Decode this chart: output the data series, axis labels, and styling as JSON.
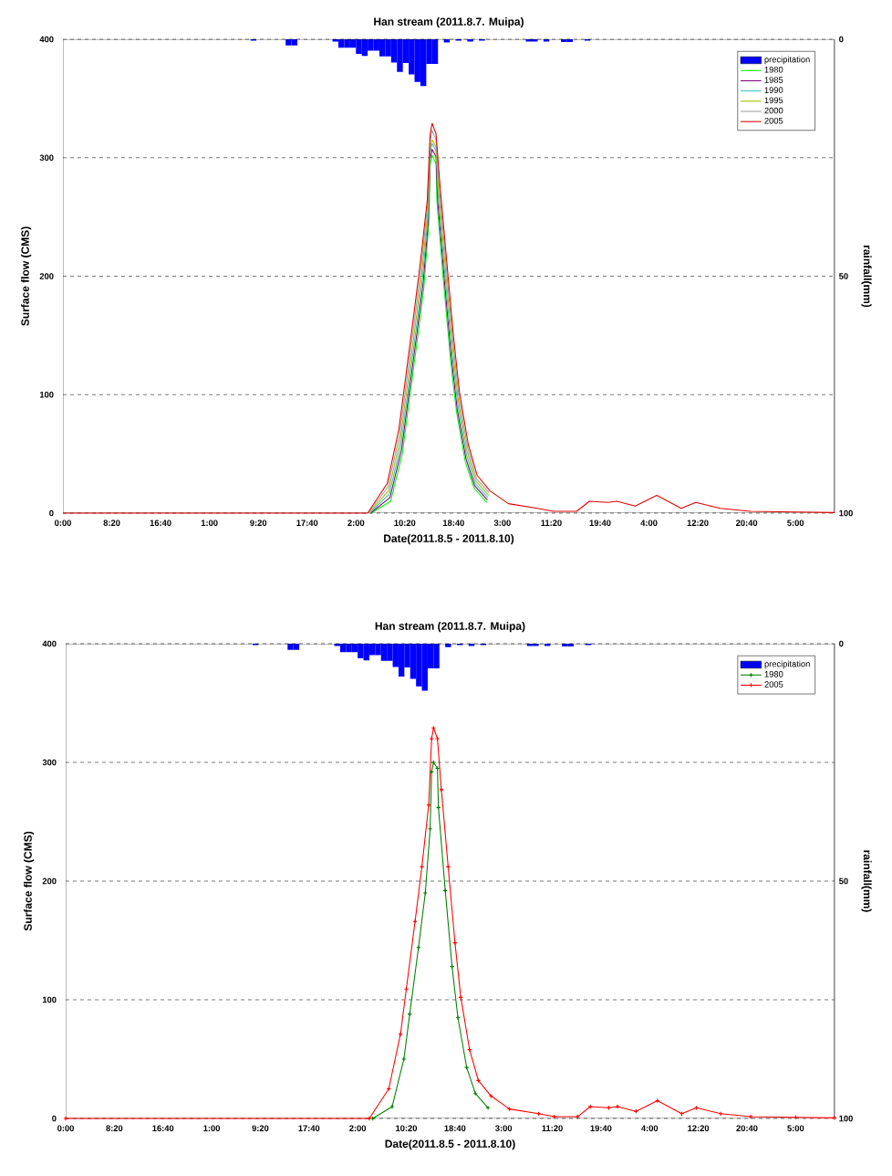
{
  "chart_data": [
    {
      "type": "line",
      "title": "Han stream (2011.8.7. Muipa)",
      "xlabel": "Date(2011.8.5 - 2011.8.10)",
      "ylabel": "Surface flow (CMS)",
      "y2label": "rainfall(mm)",
      "x": [
        "2011-08-05T00:00",
        "2011-08-07T04:00",
        "2011-08-07T07:20",
        "2011-08-07T09:20",
        "2011-08-07T10:20",
        "2011-08-07T11:50",
        "2011-08-07T13:00",
        "2011-08-07T14:10",
        "2011-08-07T14:40",
        "2011-08-07T15:00",
        "2011-08-07T15:40",
        "2011-08-07T16:20",
        "2011-08-07T17:30",
        "2011-08-07T18:40",
        "2011-08-07T19:40",
        "2011-08-07T21:10",
        "2011-08-07T22:40",
        "2011-08-08T00:50",
        "2011-08-08T04:00",
        "2011-08-08T09:00",
        "2011-08-08T11:40",
        "2011-08-08T15:40",
        "2011-08-08T17:50",
        "2011-08-08T21:00",
        "2011-08-08T22:30",
        "2011-08-09T01:40",
        "2011-08-09T05:20",
        "2011-08-09T09:30",
        "2011-08-09T12:00",
        "2011-08-09T16:10",
        "2011-08-09T21:20",
        "2011-08-10T05:00",
        "2011-08-10T11:40"
      ],
      "xlim": [
        "2011-08-05T00:00",
        "2011-08-10T11:40"
      ],
      "xticks": [
        {
          "value": "2011-08-05T00:00",
          "label": "0:00"
        },
        {
          "value": "2011-08-05T08:20",
          "label": "8:20"
        },
        {
          "value": "2011-08-05T16:40",
          "label": "16:40"
        },
        {
          "value": "2011-08-06T01:00",
          "label": "1:00"
        },
        {
          "value": "2011-08-06T09:20",
          "label": "9:20"
        },
        {
          "value": "2011-08-06T17:40",
          "label": "17:40"
        },
        {
          "value": "2011-08-07T02:00",
          "label": "2:00"
        },
        {
          "value": "2011-08-07T10:20",
          "label": "10:20"
        },
        {
          "value": "2011-08-07T18:40",
          "label": "18:40"
        },
        {
          "value": "2011-08-08T03:00",
          "label": "3:00"
        },
        {
          "value": "2011-08-08T11:20",
          "label": "11:20"
        },
        {
          "value": "2011-08-08T19:40",
          "label": "19:40"
        },
        {
          "value": "2011-08-09T04:00",
          "label": "4:00"
        },
        {
          "value": "2011-08-09T12:20",
          "label": "12:20"
        },
        {
          "value": "2011-08-09T20:40",
          "label": "20:40"
        },
        {
          "value": "2011-08-10T05:00",
          "label": "5:00"
        }
      ],
      "ylim": [
        0,
        400
      ],
      "yticks": [
        0,
        100,
        200,
        300,
        400
      ],
      "y2lim": [
        100,
        0
      ],
      "y2ticks": [
        0,
        50,
        100
      ],
      "grid": "y",
      "legend": "top right",
      "marker": "none",
      "series": [
        {
          "name": "precipitation",
          "type": "bar",
          "axis": "y2",
          "color": "#0000ff",
          "x": [
            "2011-08-06T08:30",
            "2011-08-06T14:30",
            "2011-08-06T15:30",
            "2011-08-06T22:30",
            "2011-08-06T23:30",
            "2011-08-07T00:30",
            "2011-08-07T01:30",
            "2011-08-07T02:30",
            "2011-08-07T03:30",
            "2011-08-07T04:30",
            "2011-08-07T05:30",
            "2011-08-07T06:30",
            "2011-08-07T07:30",
            "2011-08-07T08:30",
            "2011-08-07T09:30",
            "2011-08-07T10:30",
            "2011-08-07T11:30",
            "2011-08-07T12:30",
            "2011-08-07T13:30",
            "2011-08-07T14:30",
            "2011-08-07T15:30",
            "2011-08-07T17:30",
            "2011-08-07T19:30",
            "2011-08-07T21:30",
            "2011-08-07T23:30",
            "2011-08-08T07:30",
            "2011-08-08T08:30",
            "2011-08-08T10:30",
            "2011-08-08T13:30",
            "2011-08-08T14:30",
            "2011-08-08T17:30"
          ],
          "values": [
            0.3,
            1.3,
            1.3,
            0.5,
            1.8,
            1.8,
            1.8,
            3.1,
            3.5,
            2.4,
            2.4,
            3.6,
            3.6,
            4.9,
            6.9,
            5.0,
            7.4,
            9.0,
            9.9,
            5.2,
            5.2,
            0.7,
            0.3,
            0.5,
            0.3,
            0.5,
            0.5,
            0.5,
            0.6,
            0.6,
            0.3
          ]
        },
        {
          "name": "1980",
          "color": "#00ff00",
          "x": [
            "2011-08-07T04:35",
            "2011-08-07T07:55",
            "2011-08-07T09:55",
            "2011-08-07T10:55",
            "2011-08-07T12:25",
            "2011-08-07T13:35",
            "2011-08-07T14:25",
            "2011-08-07T14:40",
            "2011-08-07T15:00",
            "2011-08-07T15:40",
            "2011-08-07T15:50",
            "2011-08-07T17:00",
            "2011-08-07T18:10",
            "2011-08-07T19:10",
            "2011-08-07T20:40",
            "2011-08-07T22:10",
            "2011-08-08T00:20"
          ],
          "values": [
            0,
            10,
            50,
            88,
            144,
            190,
            244,
            294,
            302,
            295,
            262,
            192,
            128,
            85,
            43,
            21,
            9
          ]
        },
        {
          "name": "1985",
          "color": "#800080",
          "x": [
            "2011-08-07T04:28",
            "2011-08-07T07:48",
            "2011-08-07T09:48",
            "2011-08-07T10:48",
            "2011-08-07T12:18",
            "2011-08-07T13:28",
            "2011-08-07T14:22",
            "2011-08-07T14:40",
            "2011-08-07T15:00",
            "2011-08-07T15:40",
            "2011-08-07T15:56",
            "2011-08-07T17:06",
            "2011-08-07T18:16",
            "2011-08-07T19:16",
            "2011-08-07T20:46",
            "2011-08-07T22:16",
            "2011-08-08T00:26"
          ],
          "values": [
            0,
            13,
            54,
            92,
            148,
            194,
            248,
            299,
            307,
            301,
            265,
            196,
            132,
            88,
            46,
            23,
            11
          ]
        },
        {
          "name": "1990",
          "color": "#40c0c0",
          "x": [
            "2011-08-07T04:21",
            "2011-08-07T07:41",
            "2011-08-07T09:41",
            "2011-08-07T10:41",
            "2011-08-07T12:11",
            "2011-08-07T13:21",
            "2011-08-07T14:19",
            "2011-08-07T14:40",
            "2011-08-07T15:00",
            "2011-08-07T15:40",
            "2011-08-07T16:02",
            "2011-08-07T17:12",
            "2011-08-07T18:22",
            "2011-08-07T19:22",
            "2011-08-07T20:52",
            "2011-08-07T22:22",
            "2011-08-08T00:32"
          ],
          "values": [
            0,
            16,
            58,
            96,
            152,
            198,
            252,
            304,
            312,
            306,
            268,
            200,
            136,
            92,
            49,
            25,
            13
          ]
        },
        {
          "name": "1995",
          "color": "#a0c000",
          "x": [
            "2011-08-07T04:14",
            "2011-08-07T07:34",
            "2011-08-07T09:34",
            "2011-08-07T10:34",
            "2011-08-07T12:04",
            "2011-08-07T13:14",
            "2011-08-07T14:16",
            "2011-08-07T14:40",
            "2011-08-07T15:00",
            "2011-08-07T15:40",
            "2011-08-07T16:08",
            "2011-08-07T17:18",
            "2011-08-07T18:28",
            "2011-08-07T19:28",
            "2011-08-07T20:58",
            "2011-08-07T22:28",
            "2011-08-08T00:38"
          ],
          "values": [
            0,
            19,
            62,
            100,
            156,
            202,
            256,
            309,
            315,
            309,
            271,
            204,
            140,
            95,
            52,
            27,
            15
          ]
        },
        {
          "name": "2000",
          "color": "#a0a0a0",
          "x": [
            "2011-08-07T04:07",
            "2011-08-07T07:27",
            "2011-08-07T09:27",
            "2011-08-07T10:27",
            "2011-08-07T11:57",
            "2011-08-07T13:07",
            "2011-08-07T14:13",
            "2011-08-07T14:40",
            "2011-08-07T15:00",
            "2011-08-07T15:40",
            "2011-08-07T16:14",
            "2011-08-07T17:24",
            "2011-08-07T18:34",
            "2011-08-07T19:34",
            "2011-08-07T21:04",
            "2011-08-07T22:34",
            "2011-08-08T00:44"
          ],
          "values": [
            0,
            22,
            66,
            104,
            161,
            207,
            260,
            314,
            323,
            315,
            274,
            208,
            144,
            98,
            55,
            29,
            17
          ]
        },
        {
          "name": "2005",
          "color": "#e00000",
          "values": [
            0,
            0,
            25,
            71,
            109,
            166,
            212,
            264,
            320,
            329,
            320,
            277,
            212,
            148,
            102,
            58,
            32,
            19,
            8,
            4,
            1.5,
            1.5,
            10,
            9,
            10,
            6,
            15,
            4,
            9,
            4,
            1.5,
            1,
            0.5
          ]
        }
      ]
    },
    {
      "type": "line",
      "title": "Han stream (2011.8.7. Muipa)",
      "xlabel": "Date(2011.8.5 - 2011.8.10)",
      "ylabel": "Surface flow (CMS)",
      "y2label": "rainfall(mm)",
      "x": [
        "2011-08-05T00:00",
        "2011-08-07T04:00",
        "2011-08-07T07:20",
        "2011-08-07T09:20",
        "2011-08-07T10:20",
        "2011-08-07T11:50",
        "2011-08-07T13:00",
        "2011-08-07T14:10",
        "2011-08-07T14:40",
        "2011-08-07T15:00",
        "2011-08-07T15:40",
        "2011-08-07T16:20",
        "2011-08-07T17:30",
        "2011-08-07T18:40",
        "2011-08-07T19:40",
        "2011-08-07T21:10",
        "2011-08-07T22:40",
        "2011-08-08T00:50",
        "2011-08-08T04:00",
        "2011-08-08T09:00",
        "2011-08-08T11:40",
        "2011-08-08T15:40",
        "2011-08-08T17:50",
        "2011-08-08T21:00",
        "2011-08-08T22:30",
        "2011-08-09T01:40",
        "2011-08-09T05:20",
        "2011-08-09T09:30",
        "2011-08-09T12:00",
        "2011-08-09T16:10",
        "2011-08-09T21:20",
        "2011-08-10T05:00",
        "2011-08-10T11:40"
      ],
      "xlim": [
        "2011-08-05T00:00",
        "2011-08-10T11:40"
      ],
      "xticks": [
        {
          "value": "2011-08-05T00:00",
          "label": "0:00"
        },
        {
          "value": "2011-08-05T08:20",
          "label": "8:20"
        },
        {
          "value": "2011-08-05T16:40",
          "label": "16:40"
        },
        {
          "value": "2011-08-06T01:00",
          "label": "1:00"
        },
        {
          "value": "2011-08-06T09:20",
          "label": "9:20"
        },
        {
          "value": "2011-08-06T17:40",
          "label": "17:40"
        },
        {
          "value": "2011-08-07T02:00",
          "label": "2:00"
        },
        {
          "value": "2011-08-07T10:20",
          "label": "10:20"
        },
        {
          "value": "2011-08-07T18:40",
          "label": "18:40"
        },
        {
          "value": "2011-08-08T03:00",
          "label": "3:00"
        },
        {
          "value": "2011-08-08T11:20",
          "label": "11:20"
        },
        {
          "value": "2011-08-08T19:40",
          "label": "19:40"
        },
        {
          "value": "2011-08-09T04:00",
          "label": "4:00"
        },
        {
          "value": "2011-08-09T12:20",
          "label": "12:20"
        },
        {
          "value": "2011-08-09T20:40",
          "label": "20:40"
        },
        {
          "value": "2011-08-10T05:00",
          "label": "5:00"
        }
      ],
      "ylim": [
        0,
        400
      ],
      "yticks": [
        0,
        100,
        200,
        300,
        400
      ],
      "y2lim": [
        100,
        0
      ],
      "y2ticks": [
        0,
        50,
        100
      ],
      "grid": "y",
      "legend": "top right",
      "marker": "cross",
      "series": [
        {
          "name": "precipitation",
          "type": "bar",
          "axis": "y2",
          "color": "#0000ff",
          "x": [
            "2011-08-06T08:30",
            "2011-08-06T14:30",
            "2011-08-06T15:30",
            "2011-08-06T22:30",
            "2011-08-06T23:30",
            "2011-08-07T00:30",
            "2011-08-07T01:30",
            "2011-08-07T02:30",
            "2011-08-07T03:30",
            "2011-08-07T04:30",
            "2011-08-07T05:30",
            "2011-08-07T06:30",
            "2011-08-07T07:30",
            "2011-08-07T08:30",
            "2011-08-07T09:30",
            "2011-08-07T10:30",
            "2011-08-07T11:30",
            "2011-08-07T12:30",
            "2011-08-07T13:30",
            "2011-08-07T14:30",
            "2011-08-07T15:30",
            "2011-08-07T17:30",
            "2011-08-07T19:30",
            "2011-08-07T21:30",
            "2011-08-07T23:30",
            "2011-08-08T07:30",
            "2011-08-08T08:30",
            "2011-08-08T10:30",
            "2011-08-08T13:30",
            "2011-08-08T14:30",
            "2011-08-08T17:30"
          ],
          "values": [
            0.3,
            1.3,
            1.3,
            0.5,
            1.8,
            1.8,
            1.8,
            3.1,
            3.5,
            2.4,
            2.4,
            3.6,
            3.6,
            4.9,
            6.9,
            5.0,
            7.4,
            9.0,
            9.9,
            5.2,
            5.2,
            0.7,
            0.3,
            0.5,
            0.3,
            0.5,
            0.5,
            0.5,
            0.6,
            0.6,
            0.3
          ]
        },
        {
          "name": "1980",
          "color": "#008000",
          "x": [
            "2011-08-07T04:35",
            "2011-08-07T07:55",
            "2011-08-07T09:55",
            "2011-08-07T10:55",
            "2011-08-07T12:25",
            "2011-08-07T13:35",
            "2011-08-07T14:25",
            "2011-08-07T14:40",
            "2011-08-07T15:00",
            "2011-08-07T15:40",
            "2011-08-07T15:50",
            "2011-08-07T17:00",
            "2011-08-07T18:10",
            "2011-08-07T19:10",
            "2011-08-07T20:40",
            "2011-08-07T22:10",
            "2011-08-08T00:20"
          ],
          "values": [
            0,
            10,
            50,
            88,
            144,
            190,
            244,
            292,
            300,
            295,
            262,
            192,
            128,
            85,
            43,
            21,
            9
          ]
        },
        {
          "name": "2005",
          "color": "#ff0000",
          "values": [
            0,
            0,
            25,
            71,
            109,
            166,
            212,
            264,
            320,
            329,
            320,
            277,
            212,
            148,
            102,
            58,
            32,
            19,
            8,
            4,
            1.5,
            1.5,
            10,
            9,
            10,
            6,
            15,
            4,
            9,
            4,
            1.5,
            1,
            0.5
          ]
        }
      ]
    }
  ]
}
